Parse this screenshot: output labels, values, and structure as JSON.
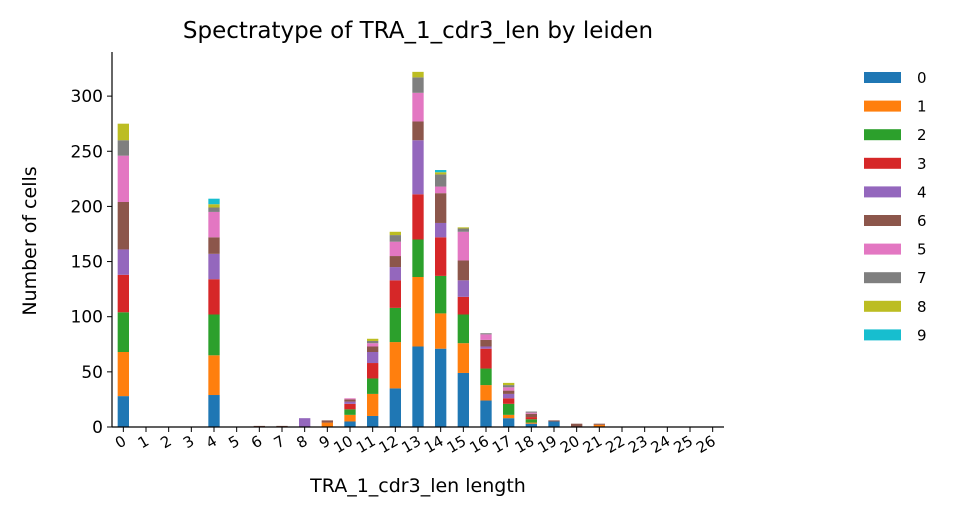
{
  "chart_data": {
    "type": "bar",
    "stacked": true,
    "title": "Spectratype of TRA_1_cdr3_len by leiden",
    "xlabel": "TRA_1_cdr3_len length",
    "ylabel": "Number of cells",
    "ylim": [
      0,
      340
    ],
    "yticks": [
      0,
      50,
      100,
      150,
      200,
      250,
      300
    ],
    "grid": false,
    "legend_position": "right",
    "categories": [
      "0",
      "1",
      "2",
      "3",
      "4",
      "5",
      "6",
      "7",
      "8",
      "9",
      "10",
      "11",
      "12",
      "13",
      "14",
      "15",
      "16",
      "17",
      "18",
      "19",
      "20",
      "21",
      "22",
      "23",
      "24",
      "25",
      "26"
    ],
    "series": [
      {
        "name": "0",
        "color": "#1f77b4",
        "values": [
          28,
          0,
          0,
          0,
          29,
          0,
          0,
          0,
          0,
          0,
          5,
          10,
          35,
          73,
          71,
          49,
          24,
          8,
          3,
          5,
          0,
          0,
          0,
          0,
          0,
          0,
          0
        ]
      },
      {
        "name": "1",
        "color": "#ff7f0e",
        "values": [
          40,
          0,
          0,
          0,
          36,
          0,
          0,
          0,
          0,
          4,
          6,
          20,
          42,
          63,
          32,
          27,
          14,
          3,
          1,
          0,
          0,
          2,
          0,
          0,
          0,
          0,
          0
        ]
      },
      {
        "name": "2",
        "color": "#2ca02c",
        "values": [
          36,
          0,
          0,
          0,
          37,
          0,
          0,
          0,
          0,
          0,
          5,
          14,
          31,
          34,
          34,
          26,
          15,
          10,
          3,
          0,
          0,
          0,
          0,
          0,
          0,
          0,
          0
        ]
      },
      {
        "name": "3",
        "color": "#d62728",
        "values": [
          34,
          0,
          0,
          0,
          32,
          0,
          0,
          0,
          0,
          0,
          5,
          14,
          25,
          41,
          35,
          16,
          18,
          5,
          2,
          0,
          0,
          0,
          0,
          0,
          0,
          0,
          0
        ]
      },
      {
        "name": "4",
        "color": "#9467bd",
        "values": [
          23,
          0,
          0,
          0,
          23,
          0,
          0,
          0,
          8,
          0,
          2,
          10,
          12,
          49,
          13,
          15,
          2,
          4,
          0,
          0,
          0,
          0,
          0,
          0,
          0,
          0,
          0
        ]
      },
      {
        "name": "6",
        "color": "#8c564b",
        "values": [
          43,
          0,
          0,
          0,
          15,
          0,
          1,
          1,
          0,
          2,
          2,
          5,
          10,
          17,
          27,
          18,
          6,
          3,
          3,
          1,
          3,
          1,
          0,
          0,
          0,
          0,
          0
        ]
      },
      {
        "name": "5",
        "color": "#e377c2",
        "values": [
          42,
          0,
          0,
          0,
          23,
          0,
          0,
          0,
          0,
          0,
          1,
          3,
          13,
          26,
          6,
          26,
          5,
          3,
          1,
          0,
          0,
          0,
          0,
          0,
          0,
          0,
          0
        ]
      },
      {
        "name": "7",
        "color": "#7f7f7f",
        "values": [
          14,
          0,
          0,
          0,
          4,
          0,
          0,
          0,
          0,
          0,
          0,
          2,
          6,
          14,
          11,
          3,
          1,
          2,
          1,
          0,
          0,
          0,
          0,
          0,
          0,
          0,
          0
        ]
      },
      {
        "name": "8",
        "color": "#bcbd22",
        "values": [
          15,
          0,
          0,
          0,
          3,
          0,
          0,
          0,
          0,
          0,
          0,
          2,
          3,
          5,
          2,
          1,
          0,
          2,
          0,
          0,
          0,
          0,
          0,
          0,
          0,
          0,
          0
        ]
      },
      {
        "name": "9",
        "color": "#17becf",
        "values": [
          0,
          0,
          0,
          0,
          5,
          0,
          0,
          0,
          0,
          0,
          0,
          0,
          0,
          0,
          2,
          0,
          0,
          0,
          0,
          0,
          0,
          0,
          0,
          0,
          0,
          0,
          0
        ]
      }
    ]
  }
}
